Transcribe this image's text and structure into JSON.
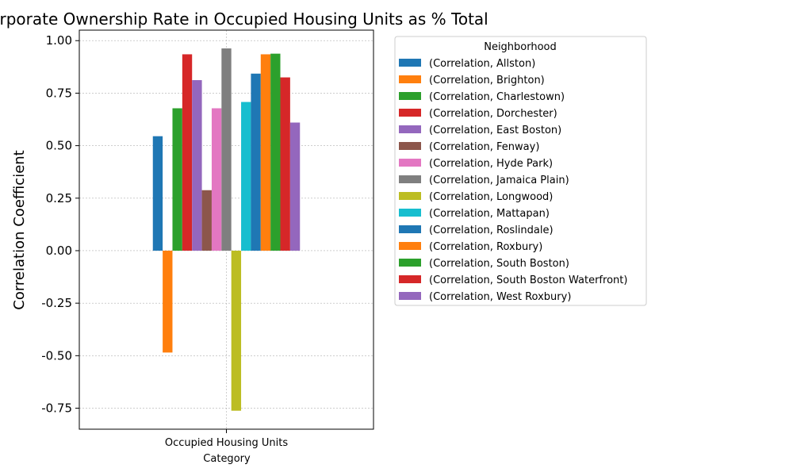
{
  "chart_data": {
    "type": "bar",
    "title": "h Corporate Ownership Rate in Occupied Housing Units as % Total",
    "xlabel": "Category",
    "ylabel": "Correlation Coefficient",
    "categories": [
      "Occupied Housing Units"
    ],
    "ylim": [
      -0.85,
      1.05
    ],
    "yticks": [
      "-0.75",
      "-0.50",
      "-0.25",
      "0.00",
      "0.25",
      "0.50",
      "0.75",
      "1.00"
    ],
    "grid": true,
    "legend_title": "Neighborhood",
    "legend_position": "right-outside",
    "series": [
      {
        "name": "(Correlation, Allston)",
        "value": 0.545,
        "color": "#1f77b4"
      },
      {
        "name": "(Correlation, Brighton)",
        "value": -0.485,
        "color": "#ff7f0e"
      },
      {
        "name": "(Correlation, Charlestown)",
        "value": 0.678,
        "color": "#2ca02c"
      },
      {
        "name": "(Correlation, Dorchester)",
        "value": 0.935,
        "color": "#d62728"
      },
      {
        "name": "(Correlation, East Boston)",
        "value": 0.812,
        "color": "#9467bd"
      },
      {
        "name": "(Correlation, Fenway)",
        "value": 0.288,
        "color": "#8c564b"
      },
      {
        "name": "(Correlation, Hyde Park)",
        "value": 0.678,
        "color": "#e377c2"
      },
      {
        "name": "(Correlation, Jamaica Plain)",
        "value": 0.963,
        "color": "#7f7f7f"
      },
      {
        "name": "(Correlation, Longwood)",
        "value": -0.762,
        "color": "#bcbd22"
      },
      {
        "name": "(Correlation, Mattapan)",
        "value": 0.708,
        "color": "#17becf"
      },
      {
        "name": "(Correlation, Roslindale)",
        "value": 0.843,
        "color": "#1f77b4"
      },
      {
        "name": "(Correlation, Roxbury)",
        "value": 0.935,
        "color": "#ff7f0e"
      },
      {
        "name": "(Correlation, South Boston)",
        "value": 0.938,
        "color": "#2ca02c"
      },
      {
        "name": "(Correlation, South Boston Waterfront)",
        "value": 0.825,
        "color": "#d62728"
      },
      {
        "name": "(Correlation, West Roxbury)",
        "value": 0.61,
        "color": "#9467bd"
      }
    ]
  }
}
